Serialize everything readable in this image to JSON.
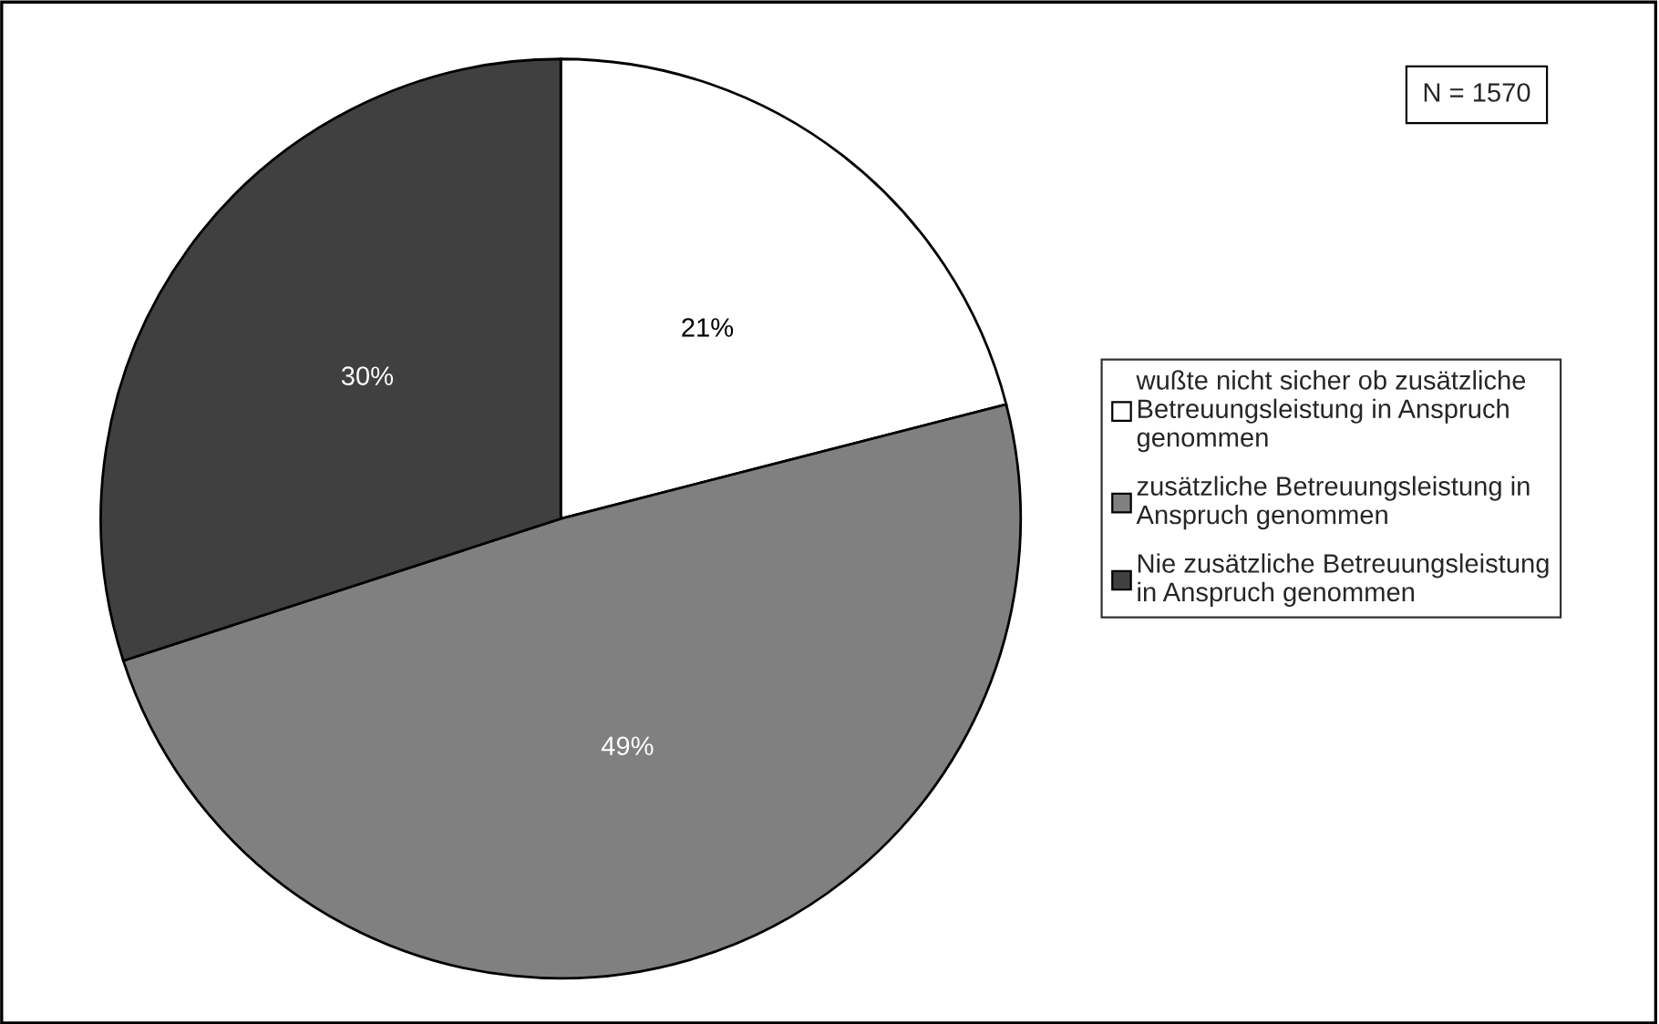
{
  "chart_data": {
    "type": "pie",
    "categories": [
      "wußte nicht sicher ob zusätzliche Betreuungsleistung in Anspruch genommen",
      "zusätzliche Betreuungsleistung in Anspruch genommen",
      "Nie zusätzliche Betreuungsleistung in Anspruch genommen"
    ],
    "values": [
      21,
      49,
      30
    ],
    "colors": [
      "#ffffff",
      "#808080",
      "#404040"
    ],
    "data_labels": true,
    "value_labels": [
      "21%",
      "49%",
      "30%"
    ],
    "annotations": [
      "N = 1570"
    ],
    "legend": "right"
  }
}
